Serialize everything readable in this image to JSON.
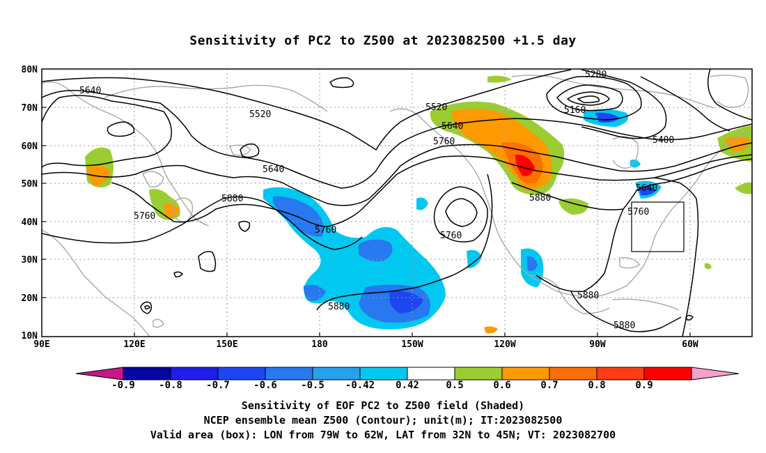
{
  "title": "Sensitivity of PC2 to Z500 at 2023082500 +1.5 day",
  "axes": {
    "lat_labels": [
      "80N",
      "70N",
      "60N",
      "50N",
      "40N",
      "30N",
      "20N",
      "10N"
    ],
    "lon_labels": [
      "90E",
      "120E",
      "150E",
      "180",
      "150W",
      "120W",
      "90W",
      "60W"
    ]
  },
  "contour_labels": [
    "5640",
    "5520",
    "5520",
    "5280",
    "5160",
    "5640",
    "5760",
    "5400",
    "5640",
    "5640",
    "5880",
    "5760",
    "5760",
    "5760",
    "5880",
    "5760",
    "5880",
    "5880",
    "5880"
  ],
  "colorbar": {
    "labels": [
      "-0.9",
      "-0.8",
      "-0.7",
      "-0.6",
      "-0.5",
      "-0.42",
      "0.42",
      "0.5",
      "0.6",
      "0.7",
      "0.8",
      "0.9"
    ],
    "colors": [
      "#c8168c",
      "#0505a0",
      "#1e1ee6",
      "#1e46f0",
      "#2878f0",
      "#28a0f0",
      "#00c8f0",
      "#ffffff",
      "#9bcd32",
      "#ff9900",
      "#ff6e00",
      "#ff3c14",
      "#ff0000",
      "#f5a0c8"
    ]
  },
  "caption": {
    "line1": "Sensitivity of EOF PC2 to Z500 field (Shaded)",
    "line2": "NCEP ensemble mean Z500 (Contour); unit(m); IT:2023082500",
    "line3": "Valid area (box): LON from 79W to 62W, LAT from 32N to 45N; VT: 2023082700"
  }
}
